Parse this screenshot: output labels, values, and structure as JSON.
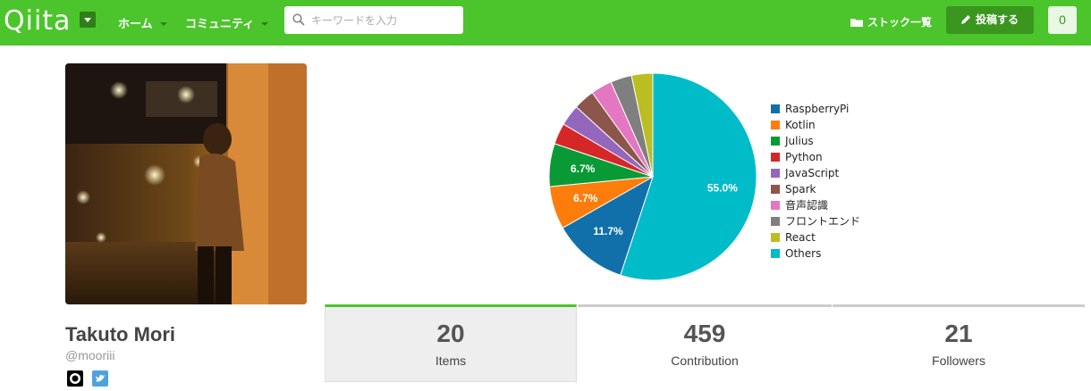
{
  "header": {
    "logo": "Qiita",
    "nav": [
      {
        "label": "ホーム"
      },
      {
        "label": "コミュニティ"
      }
    ],
    "search_placeholder": "キーワードを入力",
    "stock_label": "ストック一覧",
    "post_label": "投稿する",
    "notification_count": "0",
    "colors": {
      "header_bg": "#4cc42c",
      "button_bg": "#3a961f"
    }
  },
  "profile": {
    "name": "Takuto Mori",
    "handle": "@mooriii",
    "social_icons": [
      "github-icon",
      "twitter-icon"
    ]
  },
  "chart_data": {
    "type": "pie",
    "legend_position": "right",
    "slices": [
      {
        "label": "RaspberryPi",
        "value": 11.7,
        "color": "#1170aa",
        "show_label": true
      },
      {
        "label": "Kotlin",
        "value": 6.7,
        "color": "#fc7d0b",
        "show_label": true
      },
      {
        "label": "Julius",
        "value": 6.7,
        "color": "#0a9a35",
        "show_label": true
      },
      {
        "label": "Python",
        "value": 3.3,
        "color": "#d62728",
        "show_label": false
      },
      {
        "label": "JavaScript",
        "value": 3.3,
        "color": "#9467bd",
        "show_label": false
      },
      {
        "label": "Spark",
        "value": 3.3,
        "color": "#8c564b",
        "show_label": false
      },
      {
        "label": "音声認識",
        "value": 3.3,
        "color": "#e377c2",
        "show_label": false
      },
      {
        "label": "フロントエンド",
        "value": 3.3,
        "color": "#7f7f7f",
        "show_label": false
      },
      {
        "label": "React",
        "value": 3.3,
        "color": "#bcbd22",
        "show_label": false
      },
      {
        "label": "Others",
        "value": 55.0,
        "color": "#00bcc8",
        "show_label": true
      }
    ]
  },
  "stats": [
    {
      "value": "20",
      "label": "Items",
      "active": true
    },
    {
      "value": "459",
      "label": "Contribution",
      "active": false
    },
    {
      "value": "21",
      "label": "Followers",
      "active": false
    }
  ]
}
